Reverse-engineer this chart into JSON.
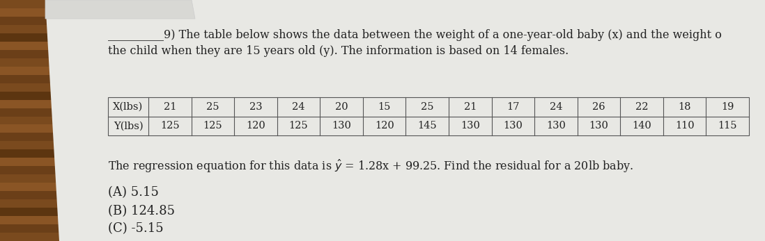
{
  "x_label": "X(lbs)",
  "y_label": "Y(lbs)",
  "x_values": [
    21,
    25,
    23,
    24,
    20,
    15,
    25,
    21,
    17,
    24,
    26,
    22,
    18,
    19
  ],
  "y_values": [
    125,
    125,
    120,
    125,
    130,
    120,
    145,
    130,
    130,
    130,
    130,
    140,
    110,
    115
  ],
  "intro_line1": "9) The table below shows the data between the weight of a one-year-old baby (x) and the weight o",
  "intro_line2": "the child when they are 15 years old (y). The information is based on 14 females.",
  "regression_text1": "The regression equation for this data is ",
  "regression_text2": " = 1.28x + 99.25. Find the residual for a 20lb baby.",
  "choice_A": "(A) 5.15",
  "choice_B": "(B) 124.85",
  "choice_C": "(C) -5.15",
  "wood_color1": "#7a4a1e",
  "wood_color2": "#5c3510",
  "paper_color": "#e8e8e4",
  "text_color": "#222222",
  "table_line_color": "#555555",
  "underline_text": "__________",
  "font_size_main": 11.5,
  "font_size_table": 10.5,
  "font_size_choices": 13
}
